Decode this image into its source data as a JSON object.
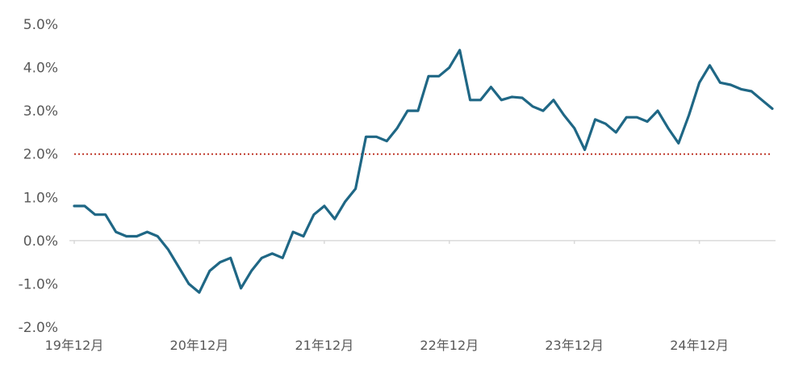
{
  "chart_data": {
    "type": "line",
    "title": "",
    "xlabel": "",
    "ylabel": "",
    "ylim": [
      -2.0,
      5.0
    ],
    "y_ticks": [
      "5.0%",
      "4.0%",
      "3.0%",
      "2.0%",
      "1.0%",
      "0.0%",
      "-1.0%",
      "-2.0%"
    ],
    "y_tick_values": [
      5,
      4,
      3,
      2,
      1,
      0,
      -1,
      -2
    ],
    "x_tick_labels": [
      "19年12月",
      "20年12月",
      "21年12月",
      "22年12月",
      "23年12月",
      "24年12月"
    ],
    "x_tick_indices": [
      0,
      12,
      24,
      36,
      48,
      60
    ],
    "grid": false,
    "reference_line": {
      "value": 2.0,
      "style": "dotted",
      "color": "#c0392b"
    },
    "colors": {
      "line": "#1f6785",
      "zero_axis": "#d9d9d9",
      "reference": "#c0392b"
    },
    "series": [
      {
        "values": [
          0.8,
          0.8,
          0.6,
          0.6,
          0.2,
          0.1,
          0.1,
          0.2,
          0.1,
          -0.2,
          -0.6,
          -1.0,
          -1.2,
          -0.7,
          -0.5,
          -0.4,
          -1.1,
          -0.7,
          -0.4,
          -0.3,
          -0.4,
          0.2,
          0.1,
          0.6,
          0.8,
          0.5,
          0.9,
          1.2,
          2.4,
          2.4,
          2.3,
          2.6,
          3.0,
          3.0,
          3.8,
          3.8,
          4.0,
          4.4,
          3.25,
          3.25,
          3.55,
          3.25,
          3.32,
          3.3,
          3.1,
          3.0,
          3.25,
          2.9,
          2.6,
          2.1,
          2.8,
          2.7,
          2.5,
          2.85,
          2.85,
          2.75,
          3.0,
          2.6,
          2.25,
          2.9,
          3.65,
          4.05,
          3.65,
          3.6,
          3.5,
          3.45,
          3.25,
          3.05
        ]
      }
    ]
  }
}
